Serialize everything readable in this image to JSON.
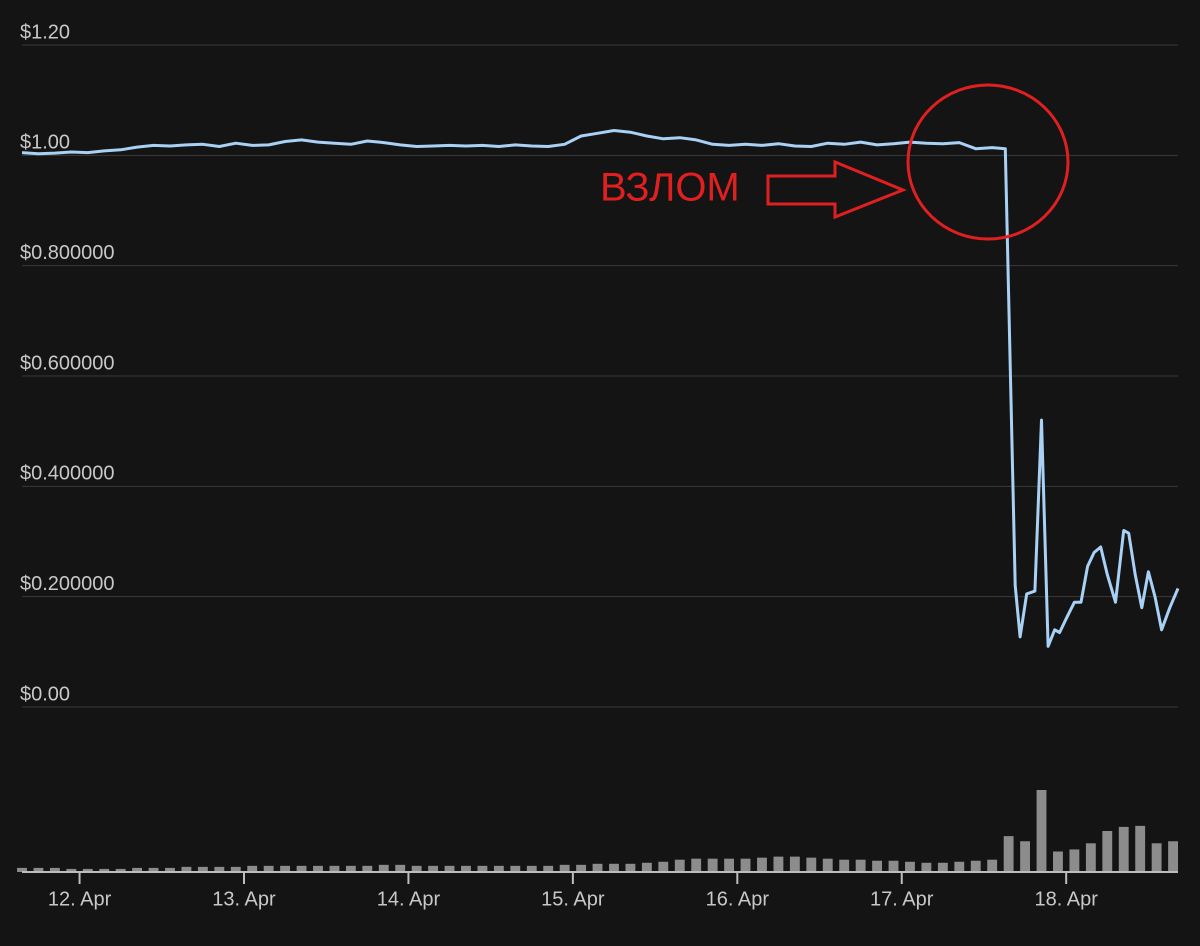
{
  "chart_data": {
    "type": "line",
    "color": "#a9d0f5",
    "xlim": [
      11.65,
      18.68
    ],
    "xticks": [
      {
        "value": 12,
        "label": "12. Apr"
      },
      {
        "value": 13,
        "label": "13. Apr"
      },
      {
        "value": 14,
        "label": "14. Apr"
      },
      {
        "value": 15,
        "label": "15. Apr"
      },
      {
        "value": 16,
        "label": "16. Apr"
      },
      {
        "value": 17,
        "label": "17. Apr"
      },
      {
        "value": 18,
        "label": "18. Apr"
      }
    ],
    "ylim": [
      0,
      1.2
    ],
    "yticks": [
      {
        "value": 1.2,
        "label": "$1.20"
      },
      {
        "value": 1.0,
        "label": "$1.00"
      },
      {
        "value": 0.8,
        "label": "$0.800000"
      },
      {
        "value": 0.6,
        "label": "$0.600000"
      },
      {
        "value": 0.4,
        "label": "$0.400000"
      },
      {
        "value": 0.2,
        "label": "$0.200000"
      },
      {
        "value": 0,
        "label": "$0.00"
      }
    ],
    "grid": true,
    "x": [
      11.65,
      11.75,
      11.85,
      11.95,
      12.05,
      12.15,
      12.25,
      12.35,
      12.45,
      12.55,
      12.65,
      12.75,
      12.85,
      12.95,
      13.05,
      13.15,
      13.25,
      13.35,
      13.45,
      13.55,
      13.65,
      13.75,
      13.85,
      13.95,
      14.05,
      14.15,
      14.25,
      14.35,
      14.45,
      14.55,
      14.65,
      14.75,
      14.85,
      14.95,
      15.05,
      15.15,
      15.25,
      15.35,
      15.45,
      15.55,
      15.65,
      15.75,
      15.85,
      15.95,
      16.05,
      16.15,
      16.25,
      16.35,
      16.45,
      16.55,
      16.65,
      16.75,
      16.85,
      16.95,
      17.05,
      17.15,
      17.25,
      17.35,
      17.45,
      17.55,
      17.63,
      17.69,
      17.72,
      17.76,
      17.81,
      17.85,
      17.89,
      17.93,
      17.96,
      18.0,
      18.05,
      18.09,
      18.13,
      18.17,
      18.21,
      18.25,
      18.3,
      18.35,
      18.38,
      18.42,
      18.46,
      18.5,
      18.54,
      18.58,
      18.63,
      18.68
    ],
    "values": [
      1.005,
      1.003,
      1.004,
      1.006,
      1.005,
      1.008,
      1.01,
      1.015,
      1.018,
      1.017,
      1.019,
      1.02,
      1.016,
      1.022,
      1.018,
      1.019,
      1.025,
      1.028,
      1.024,
      1.022,
      1.02,
      1.026,
      1.023,
      1.019,
      1.016,
      1.017,
      1.018,
      1.017,
      1.018,
      1.016,
      1.019,
      1.017,
      1.016,
      1.02,
      1.035,
      1.04,
      1.045,
      1.042,
      1.035,
      1.03,
      1.032,
      1.028,
      1.02,
      1.018,
      1.02,
      1.018,
      1.021,
      1.017,
      1.016,
      1.022,
      1.02,
      1.024,
      1.019,
      1.021,
      1.024,
      1.022,
      1.021,
      1.023,
      1.012,
      1.014,
      1.012,
      0.22,
      0.127,
      0.205,
      0.21,
      0.52,
      0.11,
      0.14,
      0.135,
      0.16,
      0.19,
      0.19,
      0.255,
      0.28,
      0.29,
      0.24,
      0.19,
      0.32,
      0.315,
      0.24,
      0.18,
      0.245,
      0.2,
      0.14,
      0.18,
      0.215
    ],
    "volume": {
      "color": "#8c8c8c",
      "x": [
        11.65,
        11.75,
        11.85,
        11.95,
        12.05,
        12.15,
        12.25,
        12.35,
        12.45,
        12.55,
        12.65,
        12.75,
        12.85,
        12.95,
        13.05,
        13.15,
        13.25,
        13.35,
        13.45,
        13.55,
        13.65,
        13.75,
        13.85,
        13.95,
        14.05,
        14.15,
        14.25,
        14.35,
        14.45,
        14.55,
        14.65,
        14.75,
        14.85,
        14.95,
        15.05,
        15.15,
        15.25,
        15.35,
        15.45,
        15.55,
        15.65,
        15.75,
        15.85,
        15.95,
        16.05,
        16.15,
        16.25,
        16.35,
        16.45,
        16.55,
        16.65,
        16.75,
        16.85,
        16.95,
        17.05,
        17.15,
        17.25,
        17.35,
        17.45,
        17.55,
        17.65,
        17.75,
        17.85,
        17.95,
        18.05,
        18.15,
        18.25,
        18.35,
        18.45,
        18.55,
        18.65
      ],
      "values": [
        4,
        4,
        4,
        3,
        3,
        3,
        3,
        4,
        4,
        4,
        5,
        5,
        5,
        5,
        6,
        6,
        6,
        6,
        6,
        6,
        6,
        6,
        7,
        7,
        6,
        6,
        6,
        6,
        6,
        6,
        6,
        6,
        6,
        7,
        7,
        8,
        8,
        8,
        9,
        10,
        12,
        13,
        13,
        13,
        13,
        14,
        15,
        15,
        14,
        13,
        12,
        12,
        11,
        11,
        10,
        9,
        9,
        10,
        11,
        12,
        35,
        30,
        80,
        20,
        22,
        28,
        40,
        44,
        45,
        28,
        30
      ]
    },
    "annotation": "ВЗЛОМ",
    "annotation_color": "#e02020"
  }
}
